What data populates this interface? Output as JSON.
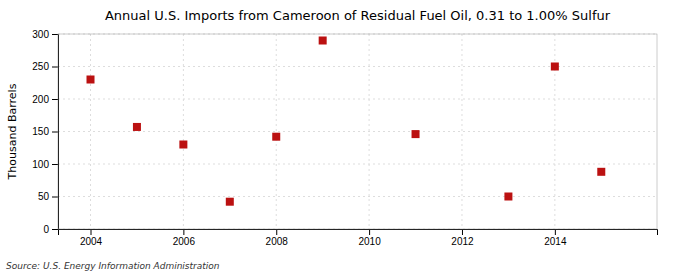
{
  "chart_data": {
    "type": "scatter",
    "title": "Annual U.S. Imports from Cameroon of Residual Fuel Oil, 0.31 to 1.00% Sulfur",
    "ylabel": "Thousand Barrels",
    "annotations": [
      "Source: U.S. Energy Information Administration"
    ],
    "x": [
      2004,
      2005,
      2006,
      2007,
      2008,
      2009,
      2011,
      2013,
      2014,
      2015
    ],
    "values": [
      230,
      157,
      130,
      42,
      142,
      290,
      146,
      50,
      250,
      88
    ],
    "xlim": [
      2003.3,
      2016.2
    ],
    "ylim": [
      0,
      300
    ],
    "xticks": [
      2004,
      2006,
      2008,
      2010,
      2012,
      2014
    ],
    "yticks": [
      0,
      50,
      100,
      150,
      200,
      250,
      300
    ],
    "color": "#bb1111",
    "marker": "square",
    "grid": true
  }
}
